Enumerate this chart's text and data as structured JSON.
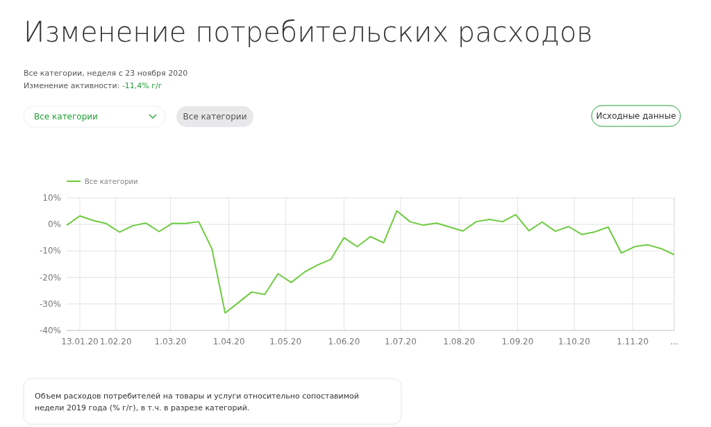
{
  "chart_data": {
    "type": "line",
    "title": "Изменение потребительских расходов",
    "subtitle": "Все категории, неделя с 23 ноября 2020",
    "annotations": [
      "Изменение активности: -11,4% г/г",
      "Все категории",
      "Все категории",
      "Исходные данные",
      "Объем расходов потребителей на товары и услуги относительно сопоставимой недели 2019 года (% г/г), в т.ч. в разрезе категорий."
    ],
    "x": [
      "2020-01-06",
      "2020-01-13",
      "2020-01-20",
      "2020-01-27",
      "2020-02-03",
      "2020-02-10",
      "2020-02-17",
      "2020-02-24",
      "2020-03-02",
      "2020-03-09",
      "2020-03-16",
      "2020-03-23",
      "2020-03-30",
      "2020-04-06",
      "2020-04-13",
      "2020-04-20",
      "2020-04-27",
      "2020-05-04",
      "2020-05-11",
      "2020-05-18",
      "2020-05-25",
      "2020-06-01",
      "2020-06-08",
      "2020-06-15",
      "2020-06-22",
      "2020-06-29",
      "2020-07-06",
      "2020-07-13",
      "2020-07-20",
      "2020-07-27",
      "2020-08-03",
      "2020-08-10",
      "2020-08-17",
      "2020-08-24",
      "2020-08-31",
      "2020-09-07",
      "2020-09-14",
      "2020-09-21",
      "2020-09-28",
      "2020-10-05",
      "2020-10-12",
      "2020-10-19",
      "2020-10-26",
      "2020-11-02",
      "2020-11-09",
      "2020-11-16",
      "2020-11-23"
    ],
    "series": [
      {
        "name": "Все категории",
        "color": "#6ccb3f",
        "values": [
          -0.3,
          3.2,
          1.5,
          0.3,
          -2.9,
          -0.5,
          0.5,
          -2.7,
          0.4,
          0.4,
          1.0,
          -9.2,
          -33.4,
          -29.5,
          -25.5,
          -26.4,
          -18.6,
          -21.9,
          -18.0,
          -15.3,
          -13.2,
          -5.0,
          -8.4,
          -4.6,
          -6.9,
          5.1,
          1.0,
          -0.3,
          0.5,
          -1.0,
          -2.5,
          1.0,
          1.9,
          1.0,
          3.7,
          -2.4,
          0.9,
          -2.6,
          -0.8,
          -3.8,
          -2.8,
          -1.0,
          -10.8,
          -8.4,
          -7.7,
          -9.1,
          -11.4
        ]
      }
    ],
    "xlim": [
      "2020-01-06",
      "2020-11-23"
    ],
    "xticks": [
      {
        "value": "2020-01-13",
        "label": "13.01.20"
      },
      {
        "value": "2020-02-01",
        "label": "1.02.20"
      },
      {
        "value": "2020-03-01",
        "label": "1.03.20"
      },
      {
        "value": "2020-04-01",
        "label": "1.04.20"
      },
      {
        "value": "2020-05-01",
        "label": "1.05.20"
      },
      {
        "value": "2020-06-01",
        "label": "1.06.20"
      },
      {
        "value": "2020-07-01",
        "label": "1.07.20"
      },
      {
        "value": "2020-08-01",
        "label": "1.08.20"
      },
      {
        "value": "2020-09-01",
        "label": "1.09.20"
      },
      {
        "value": "2020-10-01",
        "label": "1.10.20"
      },
      {
        "value": "2020-11-01",
        "label": "1.11.20"
      },
      {
        "value": "2020-11-23",
        "label": "..."
      }
    ],
    "ylim": [
      -40,
      10
    ],
    "yticks": [
      {
        "value": -40,
        "label": "-40%"
      },
      {
        "value": -30,
        "label": "-30%"
      },
      {
        "value": -20,
        "label": "-20%"
      },
      {
        "value": -10,
        "label": "-10%"
      },
      {
        "value": 0,
        "label": "0%"
      },
      {
        "value": 10,
        "label": "10%"
      }
    ],
    "grid": true,
    "legend": "top left",
    "marker": "none",
    "line_style": "solid"
  }
}
